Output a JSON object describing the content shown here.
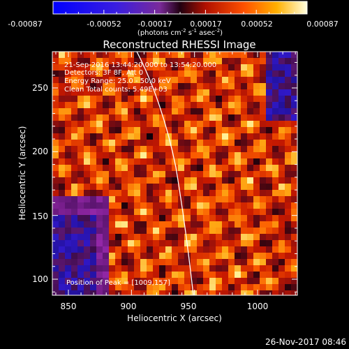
{
  "colorbar": {
    "ticks": [
      "-0.00087",
      "-0.00052",
      "-0.00017",
      "0.00017",
      "0.00052",
      "0.00087"
    ],
    "units_main": "(photons cm",
    "units_exp1": "-2",
    "units_mid1": " s",
    "units_exp2": "-1",
    "units_mid2": " asec",
    "units_exp3": "-2",
    "units_end": ")"
  },
  "title": "Reconstructed RHESSI Image",
  "info": {
    "line1": "21-Sep-2016 13:44:20.000 to 13:54:20.000",
    "line2": "Detectors: 3F 8F, Att 0",
    "line3": "Energy Range: 25.0 - 50.0 keV",
    "line4": "Clean     Total counts: 5.49E+03"
  },
  "peak": "Position of Peak = [1009,157]",
  "axes": {
    "xlabel": "Heliocentric X (arcsec)",
    "ylabel": "Heliocentric Y (arcsec)",
    "xticks": [
      "850",
      "900",
      "950",
      "1000"
    ],
    "yticks": [
      "100",
      "150",
      "200",
      "250"
    ]
  },
  "timestamp": "26-Nov-2017 08:46"
}
